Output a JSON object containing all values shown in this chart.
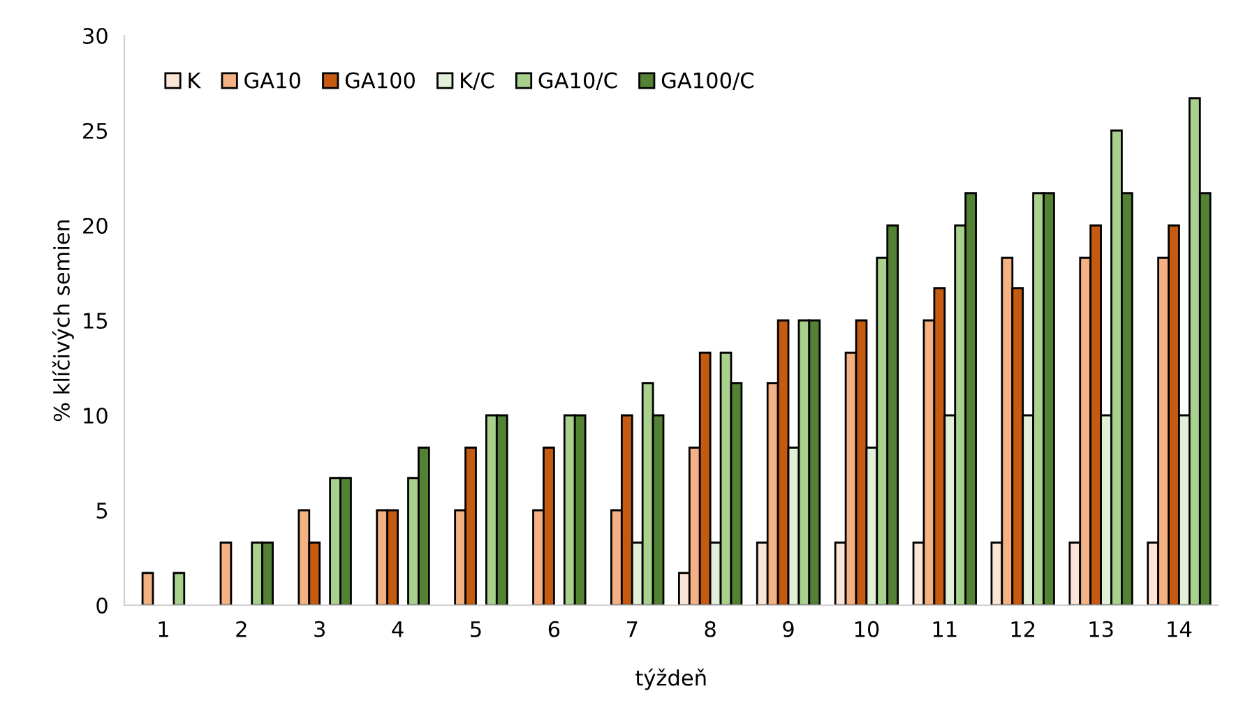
{
  "chart_data": {
    "type": "bar",
    "xlabel": "týždeň",
    "ylabel": "% klíčivých semien",
    "categories": [
      "1",
      "2",
      "3",
      "4",
      "5",
      "6",
      "7",
      "8",
      "9",
      "10",
      "11",
      "12",
      "13",
      "14"
    ],
    "series": [
      {
        "name": "K",
        "color": "#fbe5d6",
        "values": [
          null,
          null,
          null,
          null,
          null,
          null,
          null,
          1.7,
          3.3,
          3.3,
          3.3,
          3.3,
          3.3,
          3.3
        ]
      },
      {
        "name": "GA10",
        "color": "#f4b183",
        "values": [
          1.7,
          3.3,
          5,
          5,
          5,
          5,
          5,
          8.3,
          11.7,
          13.3,
          15,
          18.3,
          18.3,
          18.3
        ]
      },
      {
        "name": "GA100",
        "color": "#c55a11",
        "values": [
          null,
          null,
          3.3,
          5,
          8.3,
          8.3,
          10,
          13.3,
          15,
          15,
          16.7,
          16.7,
          20,
          20
        ]
      },
      {
        "name": "K/C",
        "color": "#e2f0d9",
        "values": [
          null,
          null,
          null,
          null,
          null,
          null,
          3.3,
          3.3,
          8.3,
          8.3,
          10,
          10,
          10,
          10
        ]
      },
      {
        "name": "GA10/C",
        "color": "#a9d18e",
        "values": [
          1.7,
          3.3,
          6.7,
          6.7,
          10,
          10,
          11.7,
          13.3,
          15,
          18.3,
          20,
          21.7,
          25,
          26.7
        ]
      },
      {
        "name": "GA100/C",
        "color": "#548235",
        "values": [
          null,
          3.3,
          6.7,
          8.3,
          10,
          10,
          10,
          11.7,
          15,
          20,
          21.7,
          21.7,
          21.7,
          21.7
        ]
      }
    ],
    "ylim": [
      0,
      30
    ],
    "yticks": [
      0,
      5,
      10,
      15,
      20,
      25,
      30
    ],
    "grid": false,
    "legend": "top left"
  }
}
